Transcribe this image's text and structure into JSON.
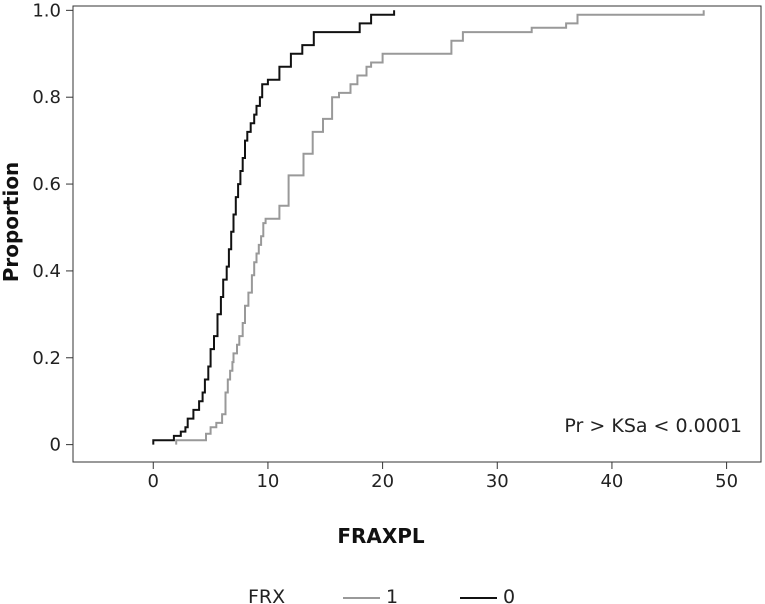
{
  "chart_data": {
    "type": "line",
    "step": true,
    "xlabel": "FRAXPL",
    "ylabel": "Proportion",
    "xlim": [
      -7,
      53
    ],
    "ylim": [
      -0.04,
      1.01
    ],
    "x_ticks": [
      0,
      10,
      20,
      30,
      40,
      50
    ],
    "x_tick_labels": [
      "0",
      "10",
      "20",
      "30",
      "40",
      "50"
    ],
    "y_ticks": [
      0,
      0.2,
      0.4,
      0.6,
      0.8,
      1.0
    ],
    "y_tick_labels": [
      "0",
      "0.2",
      "0.4",
      "0.6",
      "0.8",
      "1.0"
    ],
    "annotation": "Pr > KSa < 0.0001",
    "legend": {
      "title": "FRX",
      "position": "bottom"
    },
    "series": [
      {
        "name": "1",
        "color": "#999999",
        "x": [
          2,
          4.6,
          5.0,
          5.5,
          6.0,
          6.3,
          6.5,
          6.7,
          6.9,
          7.0,
          7.3,
          7.5,
          7.8,
          8.0,
          8.3,
          8.6,
          8.8,
          9.0,
          9.2,
          9.4,
          9.6,
          9.8,
          10.0,
          11.0,
          11.8,
          12.2,
          13.1,
          13.9,
          14.8,
          15.6,
          16.2,
          17.2,
          17.8,
          18.6,
          19.0,
          20.0,
          26.0,
          27.0,
          33.0,
          36.0,
          37.0,
          48.0
        ],
        "y": [
          0.01,
          0.025,
          0.04,
          0.05,
          0.07,
          0.12,
          0.15,
          0.17,
          0.19,
          0.21,
          0.23,
          0.25,
          0.28,
          0.32,
          0.35,
          0.39,
          0.42,
          0.44,
          0.46,
          0.48,
          0.51,
          0.52,
          0.52,
          0.55,
          0.62,
          0.62,
          0.67,
          0.72,
          0.75,
          0.8,
          0.81,
          0.83,
          0.85,
          0.87,
          0.88,
          0.9,
          0.93,
          0.95,
          0.96,
          0.97,
          0.99,
          1.0
        ]
      },
      {
        "name": "0",
        "color": "#111111",
        "x": [
          0,
          1.8,
          2.4,
          2.8,
          3.0,
          3.5,
          4.0,
          4.3,
          4.5,
          4.8,
          5.0,
          5.3,
          5.6,
          5.9,
          6.1,
          6.4,
          6.6,
          6.8,
          7.0,
          7.2,
          7.4,
          7.6,
          7.8,
          8.0,
          8.2,
          8.5,
          8.8,
          9.0,
          9.3,
          9.5,
          10.0,
          11.0,
          12.0,
          13.0,
          14.0,
          15.0,
          18.0,
          19.0,
          21.0
        ],
        "y": [
          0.01,
          0.02,
          0.03,
          0.04,
          0.06,
          0.08,
          0.1,
          0.12,
          0.15,
          0.18,
          0.22,
          0.25,
          0.3,
          0.34,
          0.38,
          0.41,
          0.45,
          0.49,
          0.53,
          0.57,
          0.6,
          0.63,
          0.66,
          0.7,
          0.72,
          0.74,
          0.76,
          0.78,
          0.8,
          0.83,
          0.84,
          0.87,
          0.9,
          0.92,
          0.95,
          0.95,
          0.97,
          0.99,
          1.0
        ]
      }
    ]
  }
}
